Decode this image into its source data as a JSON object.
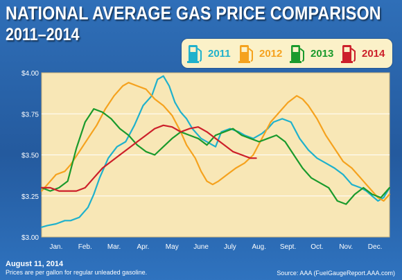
{
  "header": {
    "title": "NATIONAL AVERAGE GAS PRICE COMPARISON",
    "subtitle": "2011–2014"
  },
  "legend": [
    {
      "label": "2011",
      "color": "#1fb1cc",
      "icon": "gas-pump-icon"
    },
    {
      "label": "2012",
      "color": "#f5a21e",
      "icon": "gas-pump-icon"
    },
    {
      "label": "2013",
      "color": "#1a9a2c",
      "icon": "gas-pump-icon"
    },
    {
      "label": "2014",
      "color": "#cc1f2a",
      "icon": "gas-pump-icon"
    }
  ],
  "footer": {
    "date": "August 11, 2014",
    "note": "Prices are per gallon for regular unleaded gasoline.",
    "source": "Source: AAA (FuelGaugeReport.AAA.com)"
  },
  "colors": {
    "background": "#2a65ad",
    "plot_bg": "#f8e7b6",
    "gridline": "#ffffff"
  },
  "chart_data": {
    "type": "line",
    "title": "NATIONAL AVERAGE GAS PRICE COMPARISON",
    "subtitle": "2011–2014",
    "xlabel": "",
    "ylabel": "",
    "categories": [
      "Jan.",
      "Feb.",
      "Mar.",
      "Apr.",
      "May",
      "June",
      "July",
      "Aug.",
      "Sept.",
      "Oct.",
      "Nov.",
      "Dec."
    ],
    "yticks": [
      "$3.00",
      "$3.25",
      "$3.50",
      "$3.75",
      "$4.00"
    ],
    "ylim": [
      3.0,
      4.0
    ],
    "xlim": [
      0,
      12
    ],
    "grid": true,
    "legend_position": "top-right",
    "series": [
      {
        "name": "2011",
        "color": "#1fb1cc",
        "x": [
          0,
          0.2,
          0.5,
          0.8,
          1.0,
          1.3,
          1.6,
          1.8,
          2.0,
          2.3,
          2.6,
          2.9,
          3.2,
          3.5,
          3.8,
          4.0,
          4.2,
          4.4,
          4.6,
          4.8,
          5.0,
          5.2,
          5.5,
          5.8,
          6.0,
          6.2,
          6.5,
          6.8,
          7.0,
          7.3,
          7.6,
          7.8,
          8.0,
          8.3,
          8.6,
          8.9,
          9.2,
          9.5,
          9.8,
          10.1,
          10.4,
          10.7,
          11.0,
          11.2,
          11.4,
          11.6,
          11.8,
          12.0
        ],
        "values": [
          3.06,
          3.07,
          3.08,
          3.1,
          3.1,
          3.12,
          3.18,
          3.26,
          3.36,
          3.48,
          3.55,
          3.58,
          3.68,
          3.8,
          3.86,
          3.96,
          3.98,
          3.92,
          3.82,
          3.76,
          3.72,
          3.66,
          3.6,
          3.57,
          3.55,
          3.64,
          3.66,
          3.64,
          3.62,
          3.6,
          3.63,
          3.66,
          3.7,
          3.72,
          3.7,
          3.6,
          3.53,
          3.48,
          3.45,
          3.42,
          3.38,
          3.32,
          3.3,
          3.28,
          3.25,
          3.22,
          3.24,
          3.3
        ]
      },
      {
        "name": "2012",
        "color": "#f5a21e",
        "x": [
          0,
          0.2,
          0.5,
          0.8,
          1.0,
          1.3,
          1.6,
          1.9,
          2.2,
          2.5,
          2.8,
          3.0,
          3.3,
          3.6,
          3.9,
          4.2,
          4.5,
          4.8,
          5.0,
          5.3,
          5.5,
          5.7,
          5.9,
          6.1,
          6.4,
          6.7,
          7.0,
          7.3,
          7.6,
          7.9,
          8.2,
          8.5,
          8.8,
          9.0,
          9.2,
          9.5,
          9.8,
          10.1,
          10.4,
          10.7,
          11.0,
          11.2,
          11.4,
          11.6,
          11.8,
          12.0
        ],
        "values": [
          3.28,
          3.32,
          3.38,
          3.4,
          3.44,
          3.52,
          3.6,
          3.68,
          3.78,
          3.86,
          3.92,
          3.94,
          3.92,
          3.9,
          3.84,
          3.8,
          3.74,
          3.64,
          3.56,
          3.48,
          3.4,
          3.34,
          3.32,
          3.34,
          3.38,
          3.42,
          3.45,
          3.5,
          3.6,
          3.7,
          3.76,
          3.82,
          3.86,
          3.84,
          3.8,
          3.72,
          3.62,
          3.54,
          3.46,
          3.42,
          3.36,
          3.32,
          3.28,
          3.24,
          3.22,
          3.26
        ]
      },
      {
        "name": "2013",
        "color": "#1a9a2c",
        "x": [
          0,
          0.3,
          0.6,
          0.9,
          1.2,
          1.5,
          1.8,
          2.1,
          2.4,
          2.7,
          3.0,
          3.3,
          3.6,
          3.9,
          4.2,
          4.5,
          4.8,
          5.1,
          5.4,
          5.7,
          6.0,
          6.3,
          6.6,
          6.9,
          7.2,
          7.5,
          7.8,
          8.1,
          8.4,
          8.7,
          9.0,
          9.3,
          9.6,
          9.9,
          10.2,
          10.5,
          10.8,
          11.1,
          11.4,
          11.7,
          12.0
        ],
        "values": [
          3.3,
          3.28,
          3.3,
          3.34,
          3.54,
          3.7,
          3.78,
          3.76,
          3.72,
          3.66,
          3.62,
          3.56,
          3.52,
          3.5,
          3.55,
          3.6,
          3.64,
          3.62,
          3.6,
          3.56,
          3.62,
          3.64,
          3.66,
          3.62,
          3.6,
          3.58,
          3.6,
          3.62,
          3.58,
          3.5,
          3.42,
          3.36,
          3.33,
          3.3,
          3.22,
          3.2,
          3.26,
          3.3,
          3.26,
          3.24,
          3.3
        ]
      },
      {
        "name": "2014",
        "color": "#cc1f2a",
        "x": [
          0,
          0.3,
          0.6,
          0.9,
          1.2,
          1.5,
          1.8,
          2.1,
          2.4,
          2.7,
          3.0,
          3.3,
          3.6,
          3.9,
          4.2,
          4.5,
          4.8,
          5.1,
          5.4,
          5.7,
          6.0,
          6.3,
          6.6,
          6.9,
          7.2,
          7.4
        ],
        "values": [
          3.3,
          3.3,
          3.28,
          3.28,
          3.28,
          3.3,
          3.36,
          3.42,
          3.46,
          3.5,
          3.54,
          3.58,
          3.62,
          3.66,
          3.68,
          3.67,
          3.64,
          3.66,
          3.67,
          3.64,
          3.6,
          3.56,
          3.52,
          3.5,
          3.48,
          3.48
        ]
      }
    ]
  }
}
